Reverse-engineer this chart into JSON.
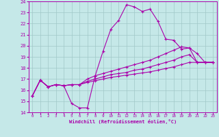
{
  "xlabel": "Windchill (Refroidissement éolien,°C)",
  "xlim": [
    -0.5,
    23.5
  ],
  "ylim": [
    14,
    24
  ],
  "xticks": [
    0,
    1,
    2,
    3,
    4,
    5,
    6,
    7,
    8,
    9,
    10,
    11,
    12,
    13,
    14,
    15,
    16,
    17,
    18,
    19,
    20,
    21,
    22,
    23
  ],
  "yticks": [
    14,
    15,
    16,
    17,
    18,
    19,
    20,
    21,
    22,
    23,
    24
  ],
  "background_color": "#c5e8e8",
  "line_color": "#aa00aa",
  "grid_color": "#a0c8c8",
  "curves": [
    {
      "x": [
        0,
        1,
        2,
        3,
        4,
        5,
        6,
        7,
        8,
        9,
        10,
        11,
        12,
        13,
        14,
        15,
        16,
        17,
        18,
        19,
        20,
        21,
        22,
        23
      ],
      "y": [
        15.5,
        16.9,
        16.3,
        16.5,
        16.4,
        14.8,
        14.4,
        14.4,
        17.3,
        19.5,
        21.5,
        22.3,
        23.7,
        23.5,
        23.1,
        23.3,
        22.2,
        20.6,
        20.5,
        19.7,
        19.8,
        18.5,
        18.5,
        18.5
      ]
    },
    {
      "x": [
        0,
        1,
        2,
        3,
        4,
        5,
        6,
        7,
        8,
        9,
        10,
        11,
        12,
        13,
        14,
        15,
        16,
        17,
        18,
        19,
        20,
        21,
        22,
        23
      ],
      "y": [
        15.5,
        16.9,
        16.3,
        16.5,
        16.4,
        16.5,
        16.5,
        17.0,
        17.3,
        17.5,
        17.7,
        17.9,
        18.1,
        18.3,
        18.5,
        18.7,
        19.0,
        19.3,
        19.6,
        19.9,
        19.8,
        19.3,
        18.5,
        18.5
      ]
    },
    {
      "x": [
        0,
        1,
        2,
        3,
        4,
        5,
        6,
        7,
        8,
        9,
        10,
        11,
        12,
        13,
        14,
        15,
        16,
        17,
        18,
        19,
        20,
        21,
        22,
        23
      ],
      "y": [
        15.5,
        16.9,
        16.3,
        16.5,
        16.4,
        16.5,
        16.5,
        16.8,
        17.0,
        17.2,
        17.4,
        17.5,
        17.6,
        17.8,
        17.9,
        18.1,
        18.3,
        18.5,
        18.7,
        19.0,
        19.2,
        18.5,
        18.5,
        18.5
      ]
    },
    {
      "x": [
        0,
        1,
        2,
        3,
        4,
        5,
        6,
        7,
        8,
        9,
        10,
        11,
        12,
        13,
        14,
        15,
        16,
        17,
        18,
        19,
        20,
        21,
        22,
        23
      ],
      "y": [
        15.5,
        16.9,
        16.3,
        16.5,
        16.4,
        16.5,
        16.5,
        16.7,
        16.85,
        17.0,
        17.15,
        17.25,
        17.35,
        17.45,
        17.55,
        17.65,
        17.8,
        17.95,
        18.1,
        18.3,
        18.5,
        18.5,
        18.5,
        18.5
      ]
    }
  ]
}
